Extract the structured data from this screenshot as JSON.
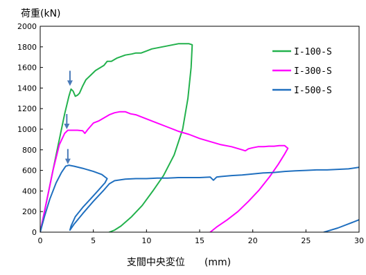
{
  "chart_data": {
    "type": "line",
    "ylabel": "荷重(kN)",
    "xlabel": "支間中央変位　　(mm)",
    "xlim": [
      0,
      30
    ],
    "ylim": [
      0,
      2000
    ],
    "xticks": [
      0,
      5,
      10,
      15,
      20,
      25,
      30
    ],
    "yticks": [
      0,
      200,
      400,
      600,
      800,
      1000,
      1200,
      1400,
      1600,
      1800,
      2000
    ],
    "grid": false,
    "legend_position": "top-right",
    "series": [
      {
        "name": "I-100-S",
        "color": "#22b14c",
        "points": [
          [
            0,
            0
          ],
          [
            0.8,
            400
          ],
          [
            1.6,
            800
          ],
          [
            2.3,
            1150
          ],
          [
            2.7,
            1320
          ],
          [
            2.9,
            1390
          ],
          [
            3.1,
            1370
          ],
          [
            3.3,
            1320
          ],
          [
            3.5,
            1330
          ],
          [
            3.7,
            1350
          ],
          [
            4,
            1420
          ],
          [
            4.3,
            1480
          ],
          [
            4.7,
            1520
          ],
          [
            5.2,
            1570
          ],
          [
            6,
            1620
          ],
          [
            6.3,
            1660
          ],
          [
            6.7,
            1660
          ],
          [
            7.2,
            1690
          ],
          [
            8,
            1720
          ],
          [
            8.6,
            1730
          ],
          [
            9,
            1740
          ],
          [
            9.5,
            1740
          ],
          [
            10,
            1760
          ],
          [
            10.5,
            1780
          ],
          [
            11,
            1790
          ],
          [
            12,
            1810
          ],
          [
            13,
            1830
          ],
          [
            14,
            1830
          ],
          [
            14.3,
            1820
          ],
          [
            14.2,
            1600
          ],
          [
            13.9,
            1300
          ],
          [
            13.4,
            1000
          ],
          [
            12.6,
            750
          ],
          [
            11.6,
            550
          ],
          [
            10.6,
            400
          ],
          [
            9.6,
            260
          ],
          [
            8.6,
            150
          ],
          [
            7.6,
            60
          ],
          [
            7,
            20
          ],
          [
            6.5,
            0
          ]
        ]
      },
      {
        "name": "I-300-S",
        "color": "#ff00ff",
        "points": [
          [
            0,
            0
          ],
          [
            0.6,
            300
          ],
          [
            1.2,
            600
          ],
          [
            1.8,
            850
          ],
          [
            2.3,
            960
          ],
          [
            2.6,
            990
          ],
          [
            3,
            990
          ],
          [
            3.5,
            990
          ],
          [
            4,
            985
          ],
          [
            4.2,
            960
          ],
          [
            4.5,
            1000
          ],
          [
            5,
            1060
          ],
          [
            5.5,
            1080
          ],
          [
            6,
            1110
          ],
          [
            6.5,
            1140
          ],
          [
            7,
            1160
          ],
          [
            7.5,
            1170
          ],
          [
            8,
            1170
          ],
          [
            8.5,
            1150
          ],
          [
            9,
            1140
          ],
          [
            10,
            1100
          ],
          [
            11,
            1060
          ],
          [
            12,
            1020
          ],
          [
            13,
            980
          ],
          [
            14,
            950
          ],
          [
            15,
            910
          ],
          [
            16,
            880
          ],
          [
            17,
            850
          ],
          [
            18,
            830
          ],
          [
            19,
            800
          ],
          [
            19.3,
            790
          ],
          [
            19.6,
            810
          ],
          [
            20,
            820
          ],
          [
            20.5,
            830
          ],
          [
            21,
            830
          ],
          [
            21.5,
            835
          ],
          [
            22,
            835
          ],
          [
            22.5,
            840
          ],
          [
            23,
            840
          ],
          [
            23.3,
            815
          ],
          [
            23,
            760
          ],
          [
            22.4,
            660
          ],
          [
            21.6,
            540
          ],
          [
            20.6,
            410
          ],
          [
            19.6,
            300
          ],
          [
            18.6,
            200
          ],
          [
            17.6,
            120
          ],
          [
            16.6,
            50
          ],
          [
            16,
            0
          ]
        ]
      },
      {
        "name": "I-500-S",
        "color": "#1f6fbf",
        "points": [
          [
            0,
            0
          ],
          [
            0.4,
            150
          ],
          [
            0.9,
            320
          ],
          [
            1.5,
            480
          ],
          [
            2,
            580
          ],
          [
            2.4,
            640
          ],
          [
            2.7,
            650
          ],
          [
            3.2,
            640
          ],
          [
            4,
            620
          ],
          [
            5,
            590
          ],
          [
            5.8,
            560
          ],
          [
            6.3,
            520
          ],
          [
            6.1,
            480
          ],
          [
            5.5,
            410
          ],
          [
            4.8,
            330
          ],
          [
            4,
            240
          ],
          [
            3.3,
            150
          ],
          [
            2.9,
            60
          ],
          [
            2.8,
            20
          ],
          [
            3.2,
            80
          ],
          [
            4,
            180
          ],
          [
            5,
            300
          ],
          [
            6,
            410
          ],
          [
            6.5,
            470
          ],
          [
            7,
            500
          ],
          [
            8,
            515
          ],
          [
            9,
            520
          ],
          [
            10,
            520
          ],
          [
            11,
            525
          ],
          [
            12,
            525
          ],
          [
            13,
            530
          ],
          [
            14,
            530
          ],
          [
            15,
            530
          ],
          [
            16,
            535
          ],
          [
            16.3,
            505
          ],
          [
            16.6,
            535
          ],
          [
            17,
            540
          ],
          [
            18,
            550
          ],
          [
            19,
            555
          ],
          [
            20,
            565
          ],
          [
            21,
            575
          ],
          [
            22,
            580
          ],
          [
            23,
            590
          ],
          [
            24,
            595
          ],
          [
            25,
            600
          ],
          [
            26,
            605
          ],
          [
            27,
            605
          ],
          [
            28,
            610
          ],
          [
            29,
            615
          ],
          [
            30,
            630
          ]
        ]
      },
      {
        "name": "",
        "color": "#1f6fbf",
        "points": [
          [
            26.7,
            0
          ],
          [
            28,
            40
          ],
          [
            29,
            80
          ],
          [
            30,
            120
          ]
        ]
      }
    ],
    "annotations": [
      {
        "type": "arrow",
        "color": "#4a7ab8",
        "x": 2.8,
        "y": 1420
      },
      {
        "type": "arrow",
        "color": "#4a7ab8",
        "x": 2.5,
        "y": 1000
      },
      {
        "type": "arrow",
        "color": "#4a7ab8",
        "x": 2.6,
        "y": 660
      }
    ]
  }
}
